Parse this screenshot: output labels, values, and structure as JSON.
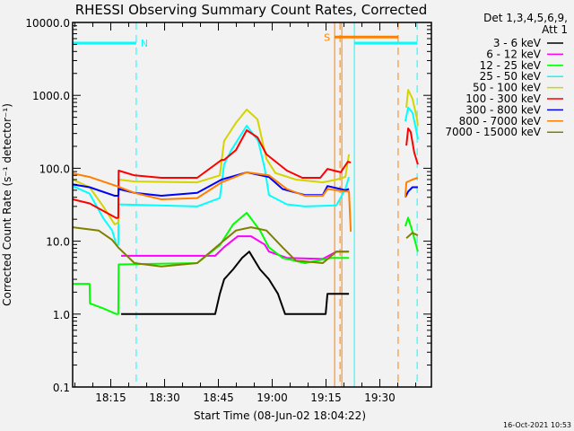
{
  "chart_data": {
    "type": "line",
    "title": "RHESSI Observing Summary Count Rates, Corrected",
    "xlabel": "Start Time (08-Jun-02 18:04:22)",
    "ylabel": "Corrected Count Rate (s⁻¹ detector⁻¹)",
    "x_units": "minutes after 18:00 UT",
    "xlim": [
      4.37,
      104.37
    ],
    "ylim": [
      0.1,
      10000
    ],
    "yscale": "log",
    "x_tick_labels": [
      {
        "t": 15,
        "label": "18:15"
      },
      {
        "t": 30,
        "label": "18:30"
      },
      {
        "t": 45,
        "label": "18:45"
      },
      {
        "t": 60,
        "label": "19:00"
      },
      {
        "t": 75,
        "label": "19:15"
      },
      {
        "t": 90,
        "label": "19:30"
      }
    ],
    "y_tick_labels": [
      {
        "v": 10000,
        "label": "10000.0"
      },
      {
        "v": 1000,
        "label": "1000.0"
      },
      {
        "v": 100,
        "label": "100.0"
      },
      {
        "v": 10,
        "label": "10.0"
      },
      {
        "v": 1,
        "label": "1.0"
      },
      {
        "v": 0.1,
        "label": "0.1"
      }
    ],
    "legend_header": [
      "Det 1,3,4,5,6,9,",
      "Att 1"
    ],
    "legend_position": "right-outside",
    "timestamp": "16-Oct-2021 10:53",
    "series": [
      {
        "name": "3 - 6 keV",
        "color": "#000000",
        "segments": [
          [
            [
              17.9,
              1.0
            ],
            [
              44.1,
              1.0
            ],
            [
              45.4,
              1.9
            ],
            [
              46.6,
              3.0
            ],
            [
              49.1,
              4.1
            ],
            [
              51.6,
              5.9
            ],
            [
              53.6,
              7.2
            ],
            [
              56.6,
              4.1
            ],
            [
              59.1,
              3.0
            ],
            [
              61.6,
              1.9
            ],
            [
              63.6,
              1.0
            ],
            [
              74.9,
              1.0
            ],
            [
              75.4,
              1.9
            ],
            [
              81.4,
              1.9
            ]
          ]
        ]
      },
      {
        "name": "6 - 12 keV",
        "color": "#ff00ff",
        "segments": [
          [
            [
              17.9,
              6.3
            ],
            [
              44.1,
              6.3
            ],
            [
              46.6,
              8.3
            ],
            [
              50.4,
              11.7
            ],
            [
              54.1,
              11.7
            ],
            [
              57.9,
              9.0
            ],
            [
              59.1,
              7.2
            ],
            [
              64.1,
              5.9
            ],
            [
              74.1,
              5.7
            ],
            [
              77.9,
              7.2
            ],
            [
              81.4,
              7.2
            ]
          ]
        ]
      },
      {
        "name": "12 - 25 keV",
        "color": "#00ff00",
        "segments": [
          [
            [
              4.4,
              2.6
            ],
            [
              9.1,
              2.6
            ],
            [
              9.2,
              1.4
            ],
            [
              12.9,
              1.2
            ],
            [
              16.6,
              1.0
            ],
            [
              17.1,
              1.0
            ],
            [
              17.2,
              4.8
            ],
            [
              39.1,
              5.0
            ],
            [
              45.4,
              8.8
            ],
            [
              49.1,
              17
            ],
            [
              52.9,
              24.5
            ],
            [
              56.6,
              14
            ],
            [
              59.1,
              8.2
            ],
            [
              62.9,
              5.9
            ],
            [
              69.1,
              5.0
            ],
            [
              76.6,
              5.9
            ],
            [
              81.4,
              5.9
            ]
          ],
          [
            [
              97.1,
              16
            ],
            [
              97.9,
              21
            ],
            [
              99.1,
              13.5
            ],
            [
              100.6,
              7.2
            ]
          ]
        ]
      },
      {
        "name": "25 - 50 keV",
        "color": "#00ffff",
        "segments": [
          [
            [
              4.4,
              57
            ],
            [
              9.1,
              45
            ],
            [
              12.9,
              20.7
            ],
            [
              15.4,
              14
            ],
            [
              16.6,
              8.8
            ],
            [
              17.1,
              9
            ],
            [
              17.2,
              32
            ],
            [
              39.1,
              30
            ],
            [
              45.4,
              39
            ],
            [
              46.6,
              113
            ],
            [
              48.6,
              178
            ],
            [
              52.9,
              384
            ],
            [
              56.1,
              237
            ],
            [
              57.9,
              100
            ],
            [
              59.1,
              43
            ],
            [
              64.1,
              32
            ],
            [
              69.1,
              30
            ],
            [
              77.9,
              31
            ],
            [
              80.4,
              52
            ],
            [
              81.4,
              76
            ]
          ],
          [
            [
              97.1,
              440
            ],
            [
              97.9,
              680
            ],
            [
              99.1,
              580
            ],
            [
              100.4,
              290
            ],
            [
              100.6,
              250
            ]
          ]
        ]
      },
      {
        "name": "50 - 100 keV",
        "color": "#d4d400",
        "segments": [
          [
            [
              4.4,
              70
            ],
            [
              9.1,
              55
            ],
            [
              12.9,
              30
            ],
            [
              16.1,
              17
            ],
            [
              17.1,
              18
            ],
            [
              17.2,
              70
            ],
            [
              21.6,
              66
            ],
            [
              39.1,
              64
            ],
            [
              45.4,
              80
            ],
            [
              46.6,
              237
            ],
            [
              49.9,
              420
            ],
            [
              52.9,
              638
            ],
            [
              55.9,
              468
            ],
            [
              58.4,
              134
            ],
            [
              60.9,
              86
            ],
            [
              66.6,
              70
            ],
            [
              74.1,
              64
            ],
            [
              77.9,
              70
            ],
            [
              80.4,
              76
            ],
            [
              81.4,
              155
            ]
          ],
          [
            [
              97.4,
              680
            ],
            [
              97.9,
              1190
            ],
            [
              99.1,
              900
            ],
            [
              100.4,
              468
            ],
            [
              100.6,
              380
            ]
          ]
        ]
      },
      {
        "name": "100 - 300 keV",
        "color": "#ff0000",
        "segments": [
          [
            [
              4.4,
              37.5
            ],
            [
              9.1,
              33
            ],
            [
              12.9,
              26
            ],
            [
              16.6,
              20.7
            ],
            [
              17.1,
              21
            ],
            [
              17.2,
              93
            ],
            [
              21.6,
              80
            ],
            [
              29.1,
              74
            ],
            [
              39.1,
              74
            ],
            [
              45.9,
              130
            ],
            [
              46.6,
              130
            ],
            [
              49.9,
              178
            ],
            [
              52.9,
              333
            ],
            [
              55.9,
              265
            ],
            [
              58.4,
              155
            ],
            [
              64.1,
              93
            ],
            [
              68.4,
              74
            ],
            [
              73.4,
              74
            ],
            [
              75.4,
              98
            ],
            [
              79.1,
              88
            ],
            [
              81.1,
              123
            ],
            [
              81.9,
              120
            ]
          ],
          [
            [
              97.4,
              205
            ],
            [
              97.9,
              352
            ],
            [
              98.6,
              315
            ],
            [
              99.6,
              164
            ],
            [
              100.6,
              113
            ]
          ]
        ]
      },
      {
        "name": "300 - 800 keV",
        "color": "#0000ff",
        "segments": [
          [
            [
              4.4,
              60
            ],
            [
              9.1,
              55
            ],
            [
              16.1,
              42
            ],
            [
              17.1,
              42
            ],
            [
              17.2,
              52
            ],
            [
              21.6,
              46
            ],
            [
              29.1,
              42
            ],
            [
              39.1,
              46
            ],
            [
              45.9,
              70
            ],
            [
              52.9,
              88
            ],
            [
              59.1,
              76
            ],
            [
              62.9,
              52
            ],
            [
              69.1,
              43
            ],
            [
              74.1,
              43
            ],
            [
              75.4,
              57
            ],
            [
              80.4,
              50
            ],
            [
              81.4,
              52
            ]
          ],
          [
            [
              97.1,
              40
            ],
            [
              97.9,
              48
            ],
            [
              99.1,
              55
            ],
            [
              100.6,
              55
            ]
          ]
        ]
      },
      {
        "name": "800 - 7000 keV",
        "color": "#ff8000",
        "segments": [
          [
            [
              4.4,
              85
            ],
            [
              9.1,
              76
            ],
            [
              16.6,
              57
            ],
            [
              21.6,
              46
            ],
            [
              29.1,
              37.5
            ],
            [
              39.1,
              39
            ],
            [
              45.9,
              64
            ],
            [
              52.9,
              88
            ],
            [
              59.1,
              80
            ],
            [
              64.1,
              52
            ],
            [
              69.1,
              42
            ],
            [
              74.1,
              42
            ],
            [
              75.4,
              52
            ],
            [
              80.4,
              48
            ],
            [
              81.4,
              48
            ],
            [
              81.9,
              13.5
            ]
          ],
          [
            [
              97.1,
              40
            ],
            [
              97.4,
              64
            ],
            [
              99.1,
              70
            ],
            [
              100.6,
              74
            ]
          ]
        ]
      },
      {
        "name": "7000 - 15000 keV",
        "color": "#808000",
        "segments": [
          [
            [
              4.4,
              15.5
            ],
            [
              11.6,
              14
            ],
            [
              15.4,
              10.4
            ],
            [
              17.1,
              8.2
            ],
            [
              21.6,
              5.0
            ],
            [
              29.1,
              4.5
            ],
            [
              39.1,
              5.0
            ],
            [
              45.9,
              9.6
            ],
            [
              49.9,
              14
            ],
            [
              54.1,
              15.5
            ],
            [
              58.4,
              14
            ],
            [
              62.9,
              8.2
            ],
            [
              66.6,
              5.4
            ],
            [
              74.1,
              5.0
            ],
            [
              77.9,
              7.2
            ],
            [
              81.4,
              7.2
            ]
          ],
          [
            [
              97.4,
              11
            ],
            [
              99.1,
              13
            ],
            [
              100.6,
              12
            ]
          ]
        ]
      }
    ],
    "annotations": [
      {
        "label": "N",
        "color": "#00ffff",
        "bar": {
          "value": 5200,
          "segments": [
            [
              4.37,
              22.1
            ],
            [
              82.9,
              100.4
            ]
          ]
        }
      },
      {
        "label": "S",
        "color": "#ff8000",
        "bar": {
          "value": 6300,
          "segments": [
            [
              77.4,
              95.1
            ]
          ]
        }
      }
    ],
    "vertical_markers": [
      {
        "t": 4.37,
        "color": "#00ffff",
        "style": "solid"
      },
      {
        "t": 22.1,
        "color": "#00ffff",
        "style": "dashed"
      },
      {
        "t": 77.4,
        "color": "#ff8000",
        "style": "solid"
      },
      {
        "t": 78.9,
        "color": "#ff8000",
        "style": "dashed"
      },
      {
        "t": 79.4,
        "color": "#ff8000",
        "style": "solid"
      },
      {
        "t": 82.9,
        "color": "#00ffff",
        "style": "solid"
      },
      {
        "t": 95.1,
        "color": "#ff8000",
        "style": "dashed"
      },
      {
        "t": 100.4,
        "color": "#00ffff",
        "style": "dashed"
      }
    ]
  }
}
